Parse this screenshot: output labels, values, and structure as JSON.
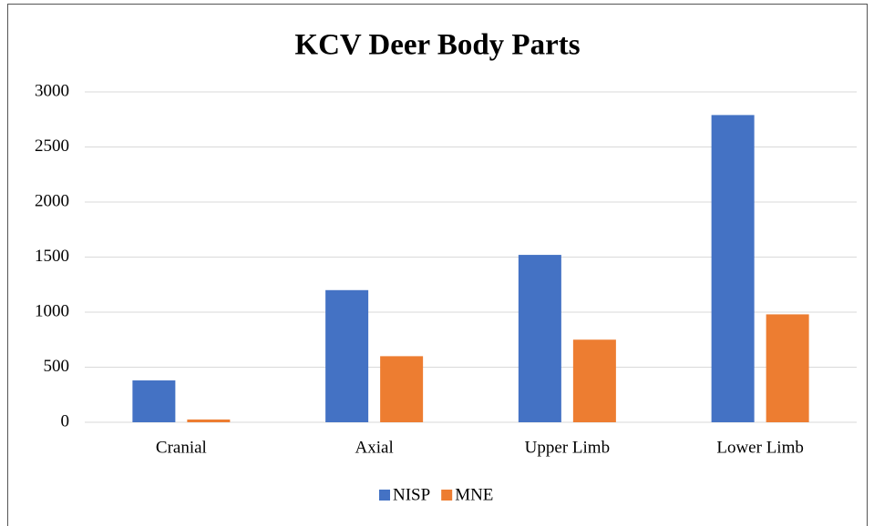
{
  "chart_data": {
    "type": "bar",
    "title": "KCV Deer Body Parts",
    "categories": [
      "Cranial",
      "Axial",
      "Upper Limb",
      "Lower Limb"
    ],
    "series": [
      {
        "name": "NISP",
        "color": "#4472c4",
        "values": [
          380,
          1200,
          1520,
          2790
        ]
      },
      {
        "name": "MNE",
        "color": "#ed7d31",
        "values": [
          25,
          600,
          750,
          980
        ]
      }
    ],
    "ylim": [
      0,
      3000
    ],
    "yticks": [
      0,
      500,
      1000,
      1500,
      2000,
      2500,
      3000
    ],
    "grid": true,
    "legend": "bottom"
  }
}
